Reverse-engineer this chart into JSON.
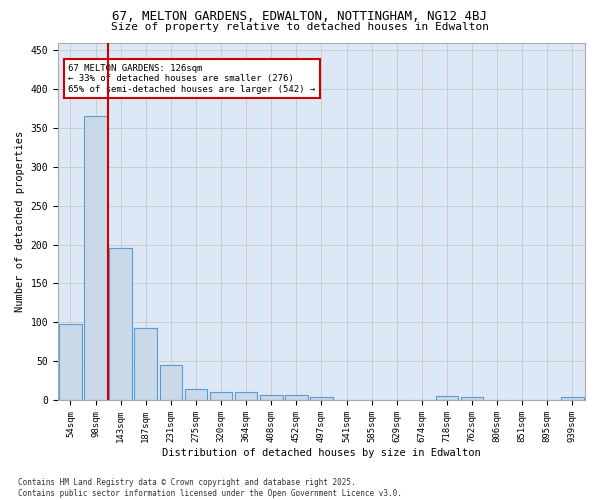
{
  "title_line1": "67, MELTON GARDENS, EDWALTON, NOTTINGHAM, NG12 4BJ",
  "title_line2": "Size of property relative to detached houses in Edwalton",
  "xlabel": "Distribution of detached houses by size in Edwalton",
  "ylabel": "Number of detached properties",
  "bar_color": "#c9d9e8",
  "bar_edge_color": "#5b9bd5",
  "categories": [
    "54sqm",
    "98sqm",
    "143sqm",
    "187sqm",
    "231sqm",
    "275sqm",
    "320sqm",
    "364sqm",
    "408sqm",
    "452sqm",
    "497sqm",
    "541sqm",
    "585sqm",
    "629sqm",
    "674sqm",
    "718sqm",
    "762sqm",
    "806sqm",
    "851sqm",
    "895sqm",
    "939sqm"
  ],
  "values": [
    98,
    365,
    196,
    93,
    45,
    14,
    10,
    10,
    7,
    6,
    4,
    0,
    0,
    0,
    0,
    5,
    4,
    0,
    0,
    0,
    4
  ],
  "red_line_x": 1.5,
  "annotation_line1": "67 MELTON GARDENS: 126sqm",
  "annotation_line2": "← 33% of detached houses are smaller (276)",
  "annotation_line3": "65% of semi-detached houses are larger (542) →",
  "annotation_box_color": "#ffffff",
  "annotation_box_edge": "#cc0000",
  "red_line_color": "#cc0000",
  "ylim": [
    0,
    460
  ],
  "yticks": [
    0,
    50,
    100,
    150,
    200,
    250,
    300,
    350,
    400,
    450
  ],
  "grid_color": "#cccccc",
  "bg_color": "#dce8f5",
  "footer_line1": "Contains HM Land Registry data © Crown copyright and database right 2025.",
  "footer_line2": "Contains public sector information licensed under the Open Government Licence v3.0."
}
